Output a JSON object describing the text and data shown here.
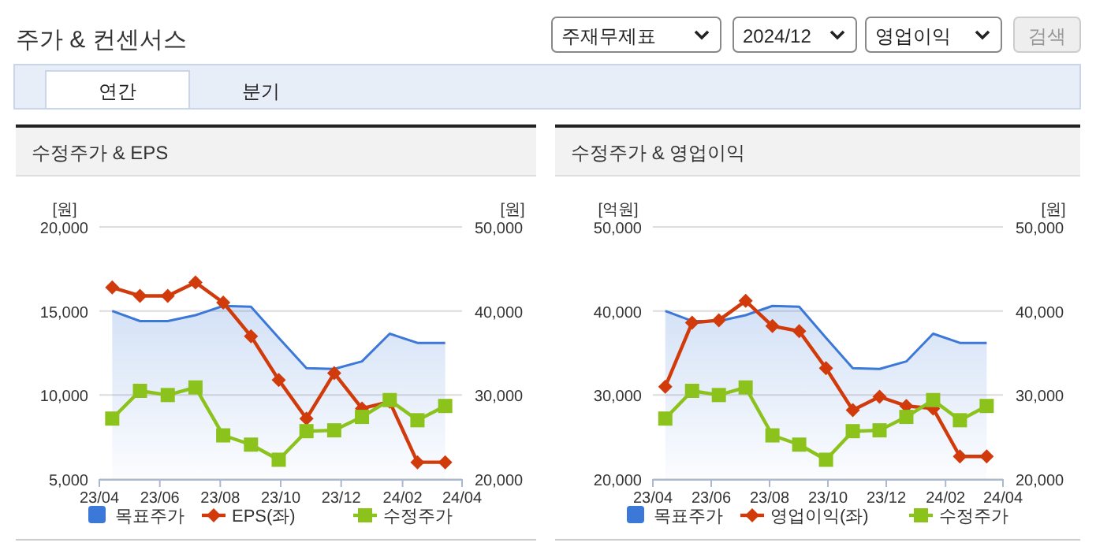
{
  "chart_data": [
    {
      "type": "other",
      "title": "주가 & 컨센서스",
      "annotations": [
        "주재무제표",
        "2024/12",
        "영업이익",
        "검색",
        "연간",
        "분기"
      ]
    },
    {
      "type": "line",
      "title": "수정주가 & EPS",
      "ylabel": "[원]",
      "y2label": "[원]",
      "x": [
        "2023-04-14",
        "2023-05-12",
        "2023-06-09",
        "2023-07-07",
        "2023-08-04",
        "2023-09-01",
        "2023-09-29",
        "2023-10-27",
        "2023-11-24",
        "2023-12-22",
        "2024-01-19",
        "2024-02-16",
        "2024-03-15"
      ],
      "xlim": [
        "2023-04",
        "2024-04"
      ],
      "xticks": [
        {
          "value": "2023-04",
          "label": "23/04"
        },
        {
          "value": "2023-06",
          "label": "23/06"
        },
        {
          "value": "2023-08",
          "label": "23/08"
        },
        {
          "value": "2023-10",
          "label": "23/10"
        },
        {
          "value": "2023-12",
          "label": "23/12"
        },
        {
          "value": "2024-02",
          "label": "24/02"
        },
        {
          "value": "2024-04",
          "label": "24/04"
        }
      ],
      "ylim": [
        5000,
        20000
      ],
      "yticks": [
        {
          "value": 5000,
          "label": "5,000"
        },
        {
          "value": 10000,
          "label": "10,000"
        },
        {
          "value": 15000,
          "label": "15,000"
        },
        {
          "value": 20000,
          "label": "20,000"
        }
      ],
      "y2lim": [
        20000,
        50000
      ],
      "y2ticks": [
        {
          "value": 20000,
          "label": "20,000"
        },
        {
          "value": 30000,
          "label": "30,000"
        },
        {
          "value": 40000,
          "label": "40,000"
        },
        {
          "value": 50000,
          "label": "50,000"
        }
      ],
      "grid": "y",
      "legend": "bottom",
      "series": [
        {
          "name": "목표주가",
          "type": "area",
          "axis": "y2",
          "color": "#3b78d8",
          "values": [
            40000,
            38800,
            38800,
            39500,
            40600,
            40500,
            36800,
            33200,
            33100,
            34000,
            37300,
            36200,
            36200
          ]
        },
        {
          "name": "EPS(좌)",
          "type": "line",
          "marker": "diamond",
          "color": "#d13b0c",
          "values": [
            16400,
            15900,
            15900,
            16700,
            15500,
            13500,
            10900,
            8600,
            11300,
            9200,
            9600,
            6000,
            6000
          ]
        },
        {
          "name": "수정주가",
          "type": "line",
          "marker": "square",
          "axis": "y2",
          "color": "#8cc21c",
          "values": [
            27200,
            30500,
            30000,
            30900,
            25200,
            24100,
            22300,
            25700,
            25800,
            27400,
            29400,
            27000,
            28700
          ]
        }
      ]
    },
    {
      "type": "line",
      "title": "수정주가 & 영업이익",
      "ylabel": "[억원]",
      "y2label": "[원]",
      "x": [
        "2023-04-14",
        "2023-05-12",
        "2023-06-09",
        "2023-07-07",
        "2023-08-04",
        "2023-09-01",
        "2023-09-29",
        "2023-10-27",
        "2023-11-24",
        "2023-12-22",
        "2024-01-19",
        "2024-02-16",
        "2024-03-15"
      ],
      "xlim": [
        "2023-04",
        "2024-04"
      ],
      "xticks": [
        {
          "value": "2023-04",
          "label": "23/04"
        },
        {
          "value": "2023-06",
          "label": "23/06"
        },
        {
          "value": "2023-08",
          "label": "23/08"
        },
        {
          "value": "2023-10",
          "label": "23/10"
        },
        {
          "value": "2023-12",
          "label": "23/12"
        },
        {
          "value": "2024-02",
          "label": "24/02"
        },
        {
          "value": "2024-04",
          "label": "24/04"
        }
      ],
      "ylim": [
        20000,
        50000
      ],
      "yticks": [
        {
          "value": 20000,
          "label": "20,000"
        },
        {
          "value": 30000,
          "label": "30,000"
        },
        {
          "value": 40000,
          "label": "40,000"
        },
        {
          "value": 50000,
          "label": "50,000"
        }
      ],
      "y2lim": [
        20000,
        50000
      ],
      "y2ticks": [
        {
          "value": 20000,
          "label": "20,000"
        },
        {
          "value": 30000,
          "label": "30,000"
        },
        {
          "value": 40000,
          "label": "40,000"
        },
        {
          "value": 50000,
          "label": "50,000"
        }
      ],
      "grid": "y",
      "legend": "bottom",
      "series": [
        {
          "name": "목표주가",
          "type": "area",
          "axis": "y2",
          "color": "#3b78d8",
          "values": [
            40000,
            38800,
            38800,
            39500,
            40600,
            40500,
            36800,
            33200,
            33100,
            34000,
            37300,
            36200,
            36200
          ]
        },
        {
          "name": "영업이익(좌)",
          "type": "line",
          "marker": "diamond",
          "color": "#d13b0c",
          "values": [
            31000,
            38600,
            38900,
            41200,
            38200,
            37600,
            33200,
            28200,
            29800,
            28700,
            28400,
            22700,
            22700
          ]
        },
        {
          "name": "수정주가",
          "type": "line",
          "marker": "square",
          "axis": "y2",
          "color": "#8cc21c",
          "values": [
            27200,
            30500,
            30000,
            30900,
            25200,
            24100,
            22300,
            25700,
            25800,
            27400,
            29400,
            27000,
            28700
          ]
        }
      ]
    }
  ]
}
